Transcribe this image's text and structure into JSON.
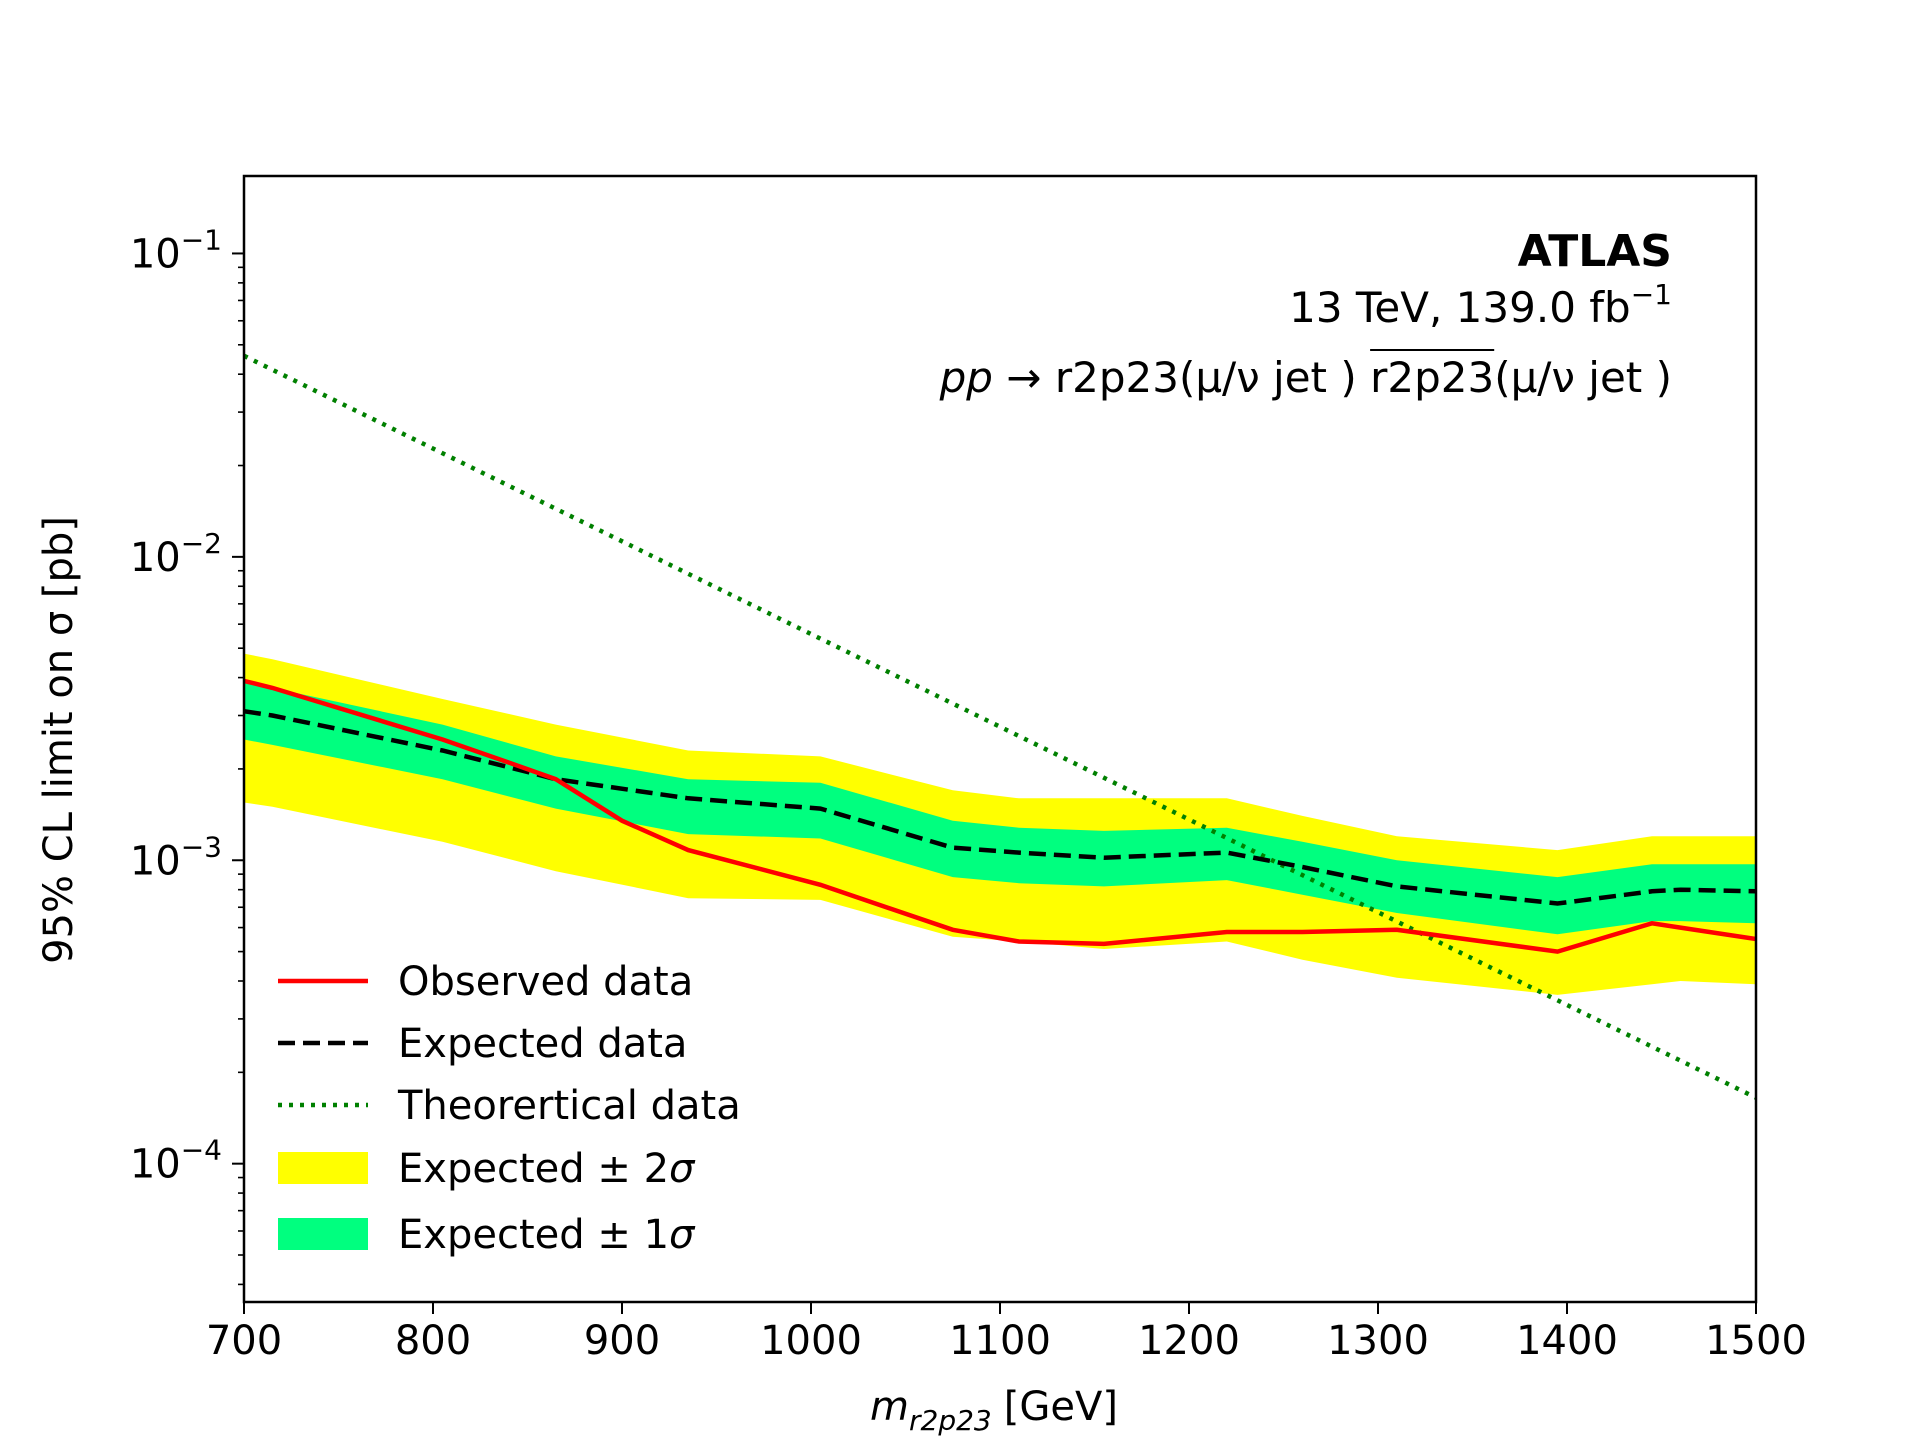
{
  "chart_data": {
    "type": "line",
    "yscale": "log",
    "xlim": [
      700,
      1500
    ],
    "ylim": [
      3.5e-05,
      0.18
    ],
    "grid": false,
    "legend_position": "lower-left",
    "xlabel": {
      "main": "m",
      "sub": "r2p23",
      "unit": "[GeV]"
    },
    "ylabel": "95% CL limit on σ [pb]",
    "x_ticks": [
      700,
      800,
      900,
      1000,
      1100,
      1200,
      1300,
      1400,
      1500
    ],
    "y_ticks": [
      {
        "value": 0.1,
        "base": "10",
        "exp": "−1"
      },
      {
        "value": 0.01,
        "base": "10",
        "exp": "−2"
      },
      {
        "value": 0.001,
        "base": "10",
        "exp": "−3"
      },
      {
        "value": 0.0001,
        "base": "10",
        "exp": "−4"
      }
    ],
    "annotations": {
      "experiment": "ATLAS",
      "energy_lumi": {
        "text": "13 TeV, 139.0 fb",
        "sup": "−1"
      },
      "process": {
        "pp": "pp",
        "arrow": " → ",
        "particle1": "r2p23",
        "decay1": "(μ/ν jet )",
        "particle2": "r2p23",
        "decay2": "(μ/ν jet )"
      }
    },
    "mass_points": [
      700,
      715,
      805,
      865,
      935,
      1005,
      1075,
      1110,
      1155,
      1220,
      1260,
      1310,
      1395,
      1445,
      1460,
      1500
    ],
    "series": [
      {
        "name": "Observed data",
        "style": "solid",
        "color": "#ff0000",
        "x": [
          700,
          715,
          805,
          840,
          865,
          900,
          935,
          1005,
          1075,
          1110,
          1155,
          1220,
          1260,
          1310,
          1395,
          1445,
          1460,
          1500
        ],
        "values": [
          0.0039,
          0.0037,
          0.0025,
          0.0021,
          0.00185,
          0.00135,
          0.00108,
          0.00083,
          0.00059,
          0.00054,
          0.00053,
          0.00058,
          0.00058,
          0.00059,
          0.0005,
          0.00062,
          0.0006,
          0.00055
        ]
      },
      {
        "name": "Expected data",
        "style": "dashed",
        "color": "#000000",
        "x": [
          700,
          715,
          805,
          865,
          935,
          1005,
          1075,
          1110,
          1155,
          1220,
          1260,
          1310,
          1395,
          1445,
          1460,
          1500
        ],
        "values": [
          0.0031,
          0.003,
          0.0023,
          0.00185,
          0.0016,
          0.00148,
          0.0011,
          0.00106,
          0.00102,
          0.00106,
          0.00095,
          0.00082,
          0.00072,
          0.00079,
          0.0008,
          0.00079
        ]
      },
      {
        "name": "Theorertical data",
        "style": "dotted",
        "color": "#008000",
        "x": [
          700,
          1500
        ],
        "values": [
          0.046,
          0.000165
        ]
      }
    ],
    "bands": [
      {
        "name": "Expected ± 2σ",
        "label_prefix": "Expected ± 2",
        "label_symbol": "σ",
        "color": "#ffff00",
        "upper": [
          0.0048,
          0.0046,
          0.0034,
          0.0028,
          0.0023,
          0.0022,
          0.0017,
          0.0016,
          0.0016,
          0.0016,
          0.0014,
          0.0012,
          0.00108,
          0.0012,
          0.0012,
          0.0012
        ],
        "lower": [
          0.00155,
          0.0015,
          0.00115,
          0.00092,
          0.00075,
          0.00074,
          0.00056,
          0.00054,
          0.00051,
          0.00054,
          0.00047,
          0.00041,
          0.00036,
          0.00039,
          0.0004,
          0.00039
        ]
      },
      {
        "name": "Expected ± 1σ",
        "label_prefix": "Expected ± 1",
        "label_symbol": "σ",
        "color": "#00ff7f",
        "upper": [
          0.0039,
          0.0037,
          0.0028,
          0.0022,
          0.00185,
          0.0018,
          0.00135,
          0.00128,
          0.00125,
          0.00128,
          0.00115,
          0.001,
          0.00088,
          0.00097,
          0.00097,
          0.00097
        ],
        "lower": [
          0.0025,
          0.0024,
          0.00185,
          0.00148,
          0.00122,
          0.00118,
          0.00088,
          0.00084,
          0.00082,
          0.00086,
          0.00077,
          0.00067,
          0.00057,
          0.00063,
          0.00063,
          0.00062
        ]
      }
    ]
  }
}
